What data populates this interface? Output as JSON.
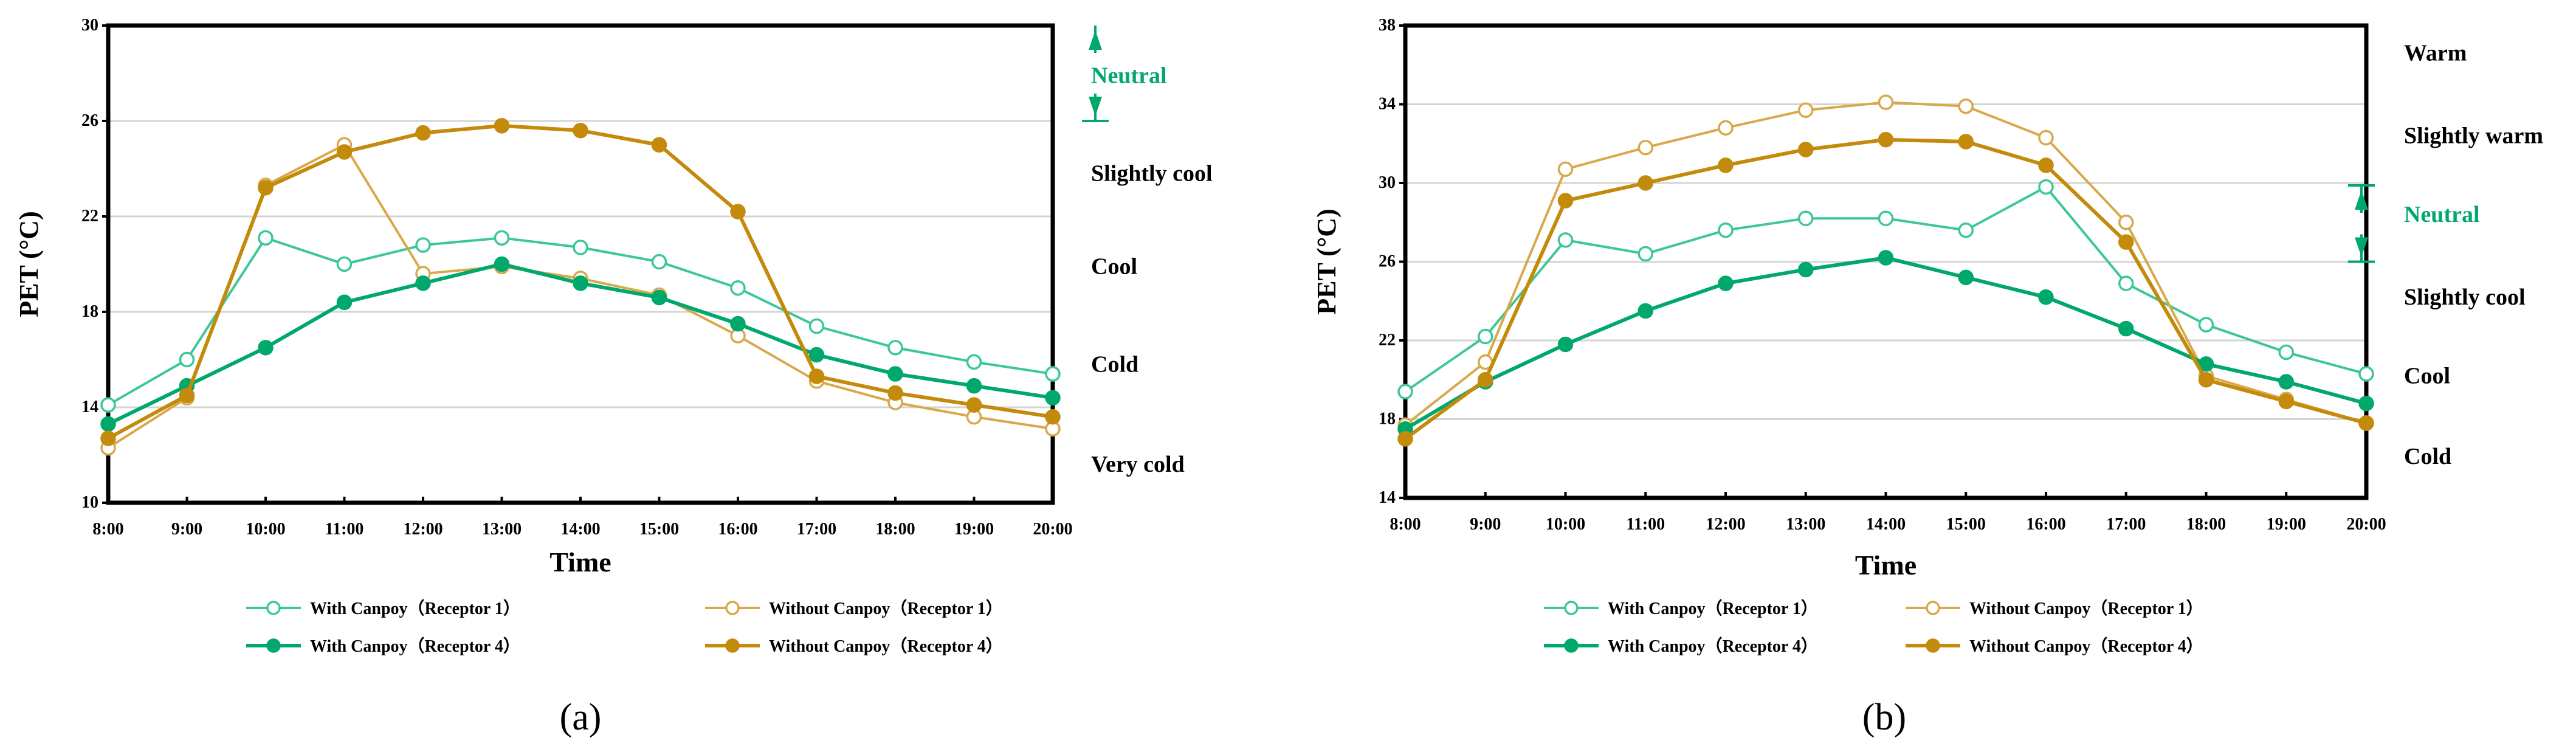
{
  "colors": {
    "with_r1": "#3cc79a",
    "without_r1": "#d9a84a",
    "with_r4": "#00a86b",
    "without_r4": "#c48a0c",
    "neutral": "#00a86b",
    "grid": "#d4d4d4"
  },
  "chart_data": [
    {
      "type": "line",
      "panel_label": "(a)",
      "panel_letter": "a",
      "xlabel": "Time",
      "ylabel": "PET (°C)",
      "ylim": [
        10,
        30
      ],
      "yticks": [
        10,
        14,
        18,
        22,
        26,
        30
      ],
      "categories": [
        "8:00",
        "9:00",
        "10:00",
        "11:00",
        "12:00",
        "13:00",
        "14:00",
        "15:00",
        "16:00",
        "17:00",
        "18:00",
        "19:00",
        "20:00"
      ],
      "neutral_range": [
        26,
        30
      ],
      "comfort_labels": [
        {
          "label": "Neutral",
          "pet": 27.9,
          "neutral": true
        },
        {
          "label": "Slightly cool",
          "pet": 23.8
        },
        {
          "label": "Cool",
          "pet": 19.9
        },
        {
          "label": "Cold",
          "pet": 15.8
        },
        {
          "label": "Very cold",
          "pet": 11.6
        }
      ],
      "series": [
        {
          "name": "With Canpoy（Receptor 1）",
          "key": "with_r1",
          "filled": false,
          "values": [
            14.1,
            16.0,
            21.1,
            20.0,
            20.8,
            21.1,
            20.7,
            20.1,
            19.0,
            17.4,
            16.5,
            15.9,
            15.4
          ]
        },
        {
          "name": "Without Canpoy（Receptor 1）",
          "key": "without_r1",
          "filled": false,
          "values": [
            12.3,
            14.4,
            23.3,
            25.0,
            19.6,
            19.9,
            19.4,
            18.7,
            17.0,
            15.1,
            14.2,
            13.6,
            13.1
          ]
        },
        {
          "name": "With Canpoy（Receptor 4）",
          "key": "with_r4",
          "filled": true,
          "values": [
            13.3,
            14.9,
            16.5,
            18.4,
            19.2,
            20.0,
            19.2,
            18.6,
            17.5,
            16.2,
            15.4,
            14.9,
            14.4
          ]
        },
        {
          "name": "Without Canpoy（Receptor 4）",
          "key": "without_r4",
          "filled": true,
          "values": [
            12.7,
            14.5,
            23.2,
            24.7,
            25.5,
            25.8,
            25.6,
            25.0,
            22.2,
            15.3,
            14.6,
            14.1,
            13.6
          ]
        }
      ]
    },
    {
      "type": "line",
      "panel_label": "(b)",
      "panel_letter": "b",
      "xlabel": "Time",
      "ylabel": "PET (°C)",
      "ylim": [
        14,
        38
      ],
      "yticks": [
        14,
        18,
        22,
        26,
        30,
        34,
        38
      ],
      "categories": [
        "8:00",
        "9:00",
        "10:00",
        "11:00",
        "12:00",
        "13:00",
        "14:00",
        "15:00",
        "16:00",
        "17:00",
        "18:00",
        "19:00",
        "20:00"
      ],
      "neutral_range": [
        26,
        30
      ],
      "comfort_labels": [
        {
          "label": "Warm",
          "pet": 36.6
        },
        {
          "label": "Slightly warm",
          "pet": 32.4
        },
        {
          "label": "Neutral",
          "pet": 28.4,
          "neutral": true
        },
        {
          "label": "Slightly cool",
          "pet": 24.2
        },
        {
          "label": "Cool",
          "pet": 20.2
        },
        {
          "label": "Cold",
          "pet": 16.1
        }
      ],
      "series": [
        {
          "name": "With Canpoy（Receptor 1）",
          "key": "with_r1",
          "filled": false,
          "values": [
            19.4,
            22.2,
            27.1,
            26.4,
            27.6,
            28.2,
            28.2,
            27.6,
            29.8,
            24.9,
            22.8,
            21.4,
            20.3
          ]
        },
        {
          "name": "Without Canpoy（Receptor 1）",
          "key": "without_r1",
          "filled": false,
          "values": [
            17.7,
            20.9,
            30.7,
            31.8,
            32.8,
            33.7,
            34.1,
            33.9,
            32.3,
            28.0,
            20.2,
            19.0,
            17.8
          ]
        },
        {
          "name": "With Canpoy（Receptor 4）",
          "key": "with_r4",
          "filled": true,
          "values": [
            17.5,
            19.9,
            21.8,
            23.5,
            24.9,
            25.6,
            26.2,
            25.2,
            24.2,
            22.6,
            20.8,
            19.9,
            18.8
          ]
        },
        {
          "name": "Without Canpoy（Receptor 4）",
          "key": "without_r4",
          "filled": true,
          "values": [
            17.0,
            20.0,
            29.1,
            30.0,
            30.9,
            31.7,
            32.2,
            32.1,
            30.9,
            27.0,
            20.0,
            18.9,
            17.8
          ]
        }
      ]
    }
  ]
}
